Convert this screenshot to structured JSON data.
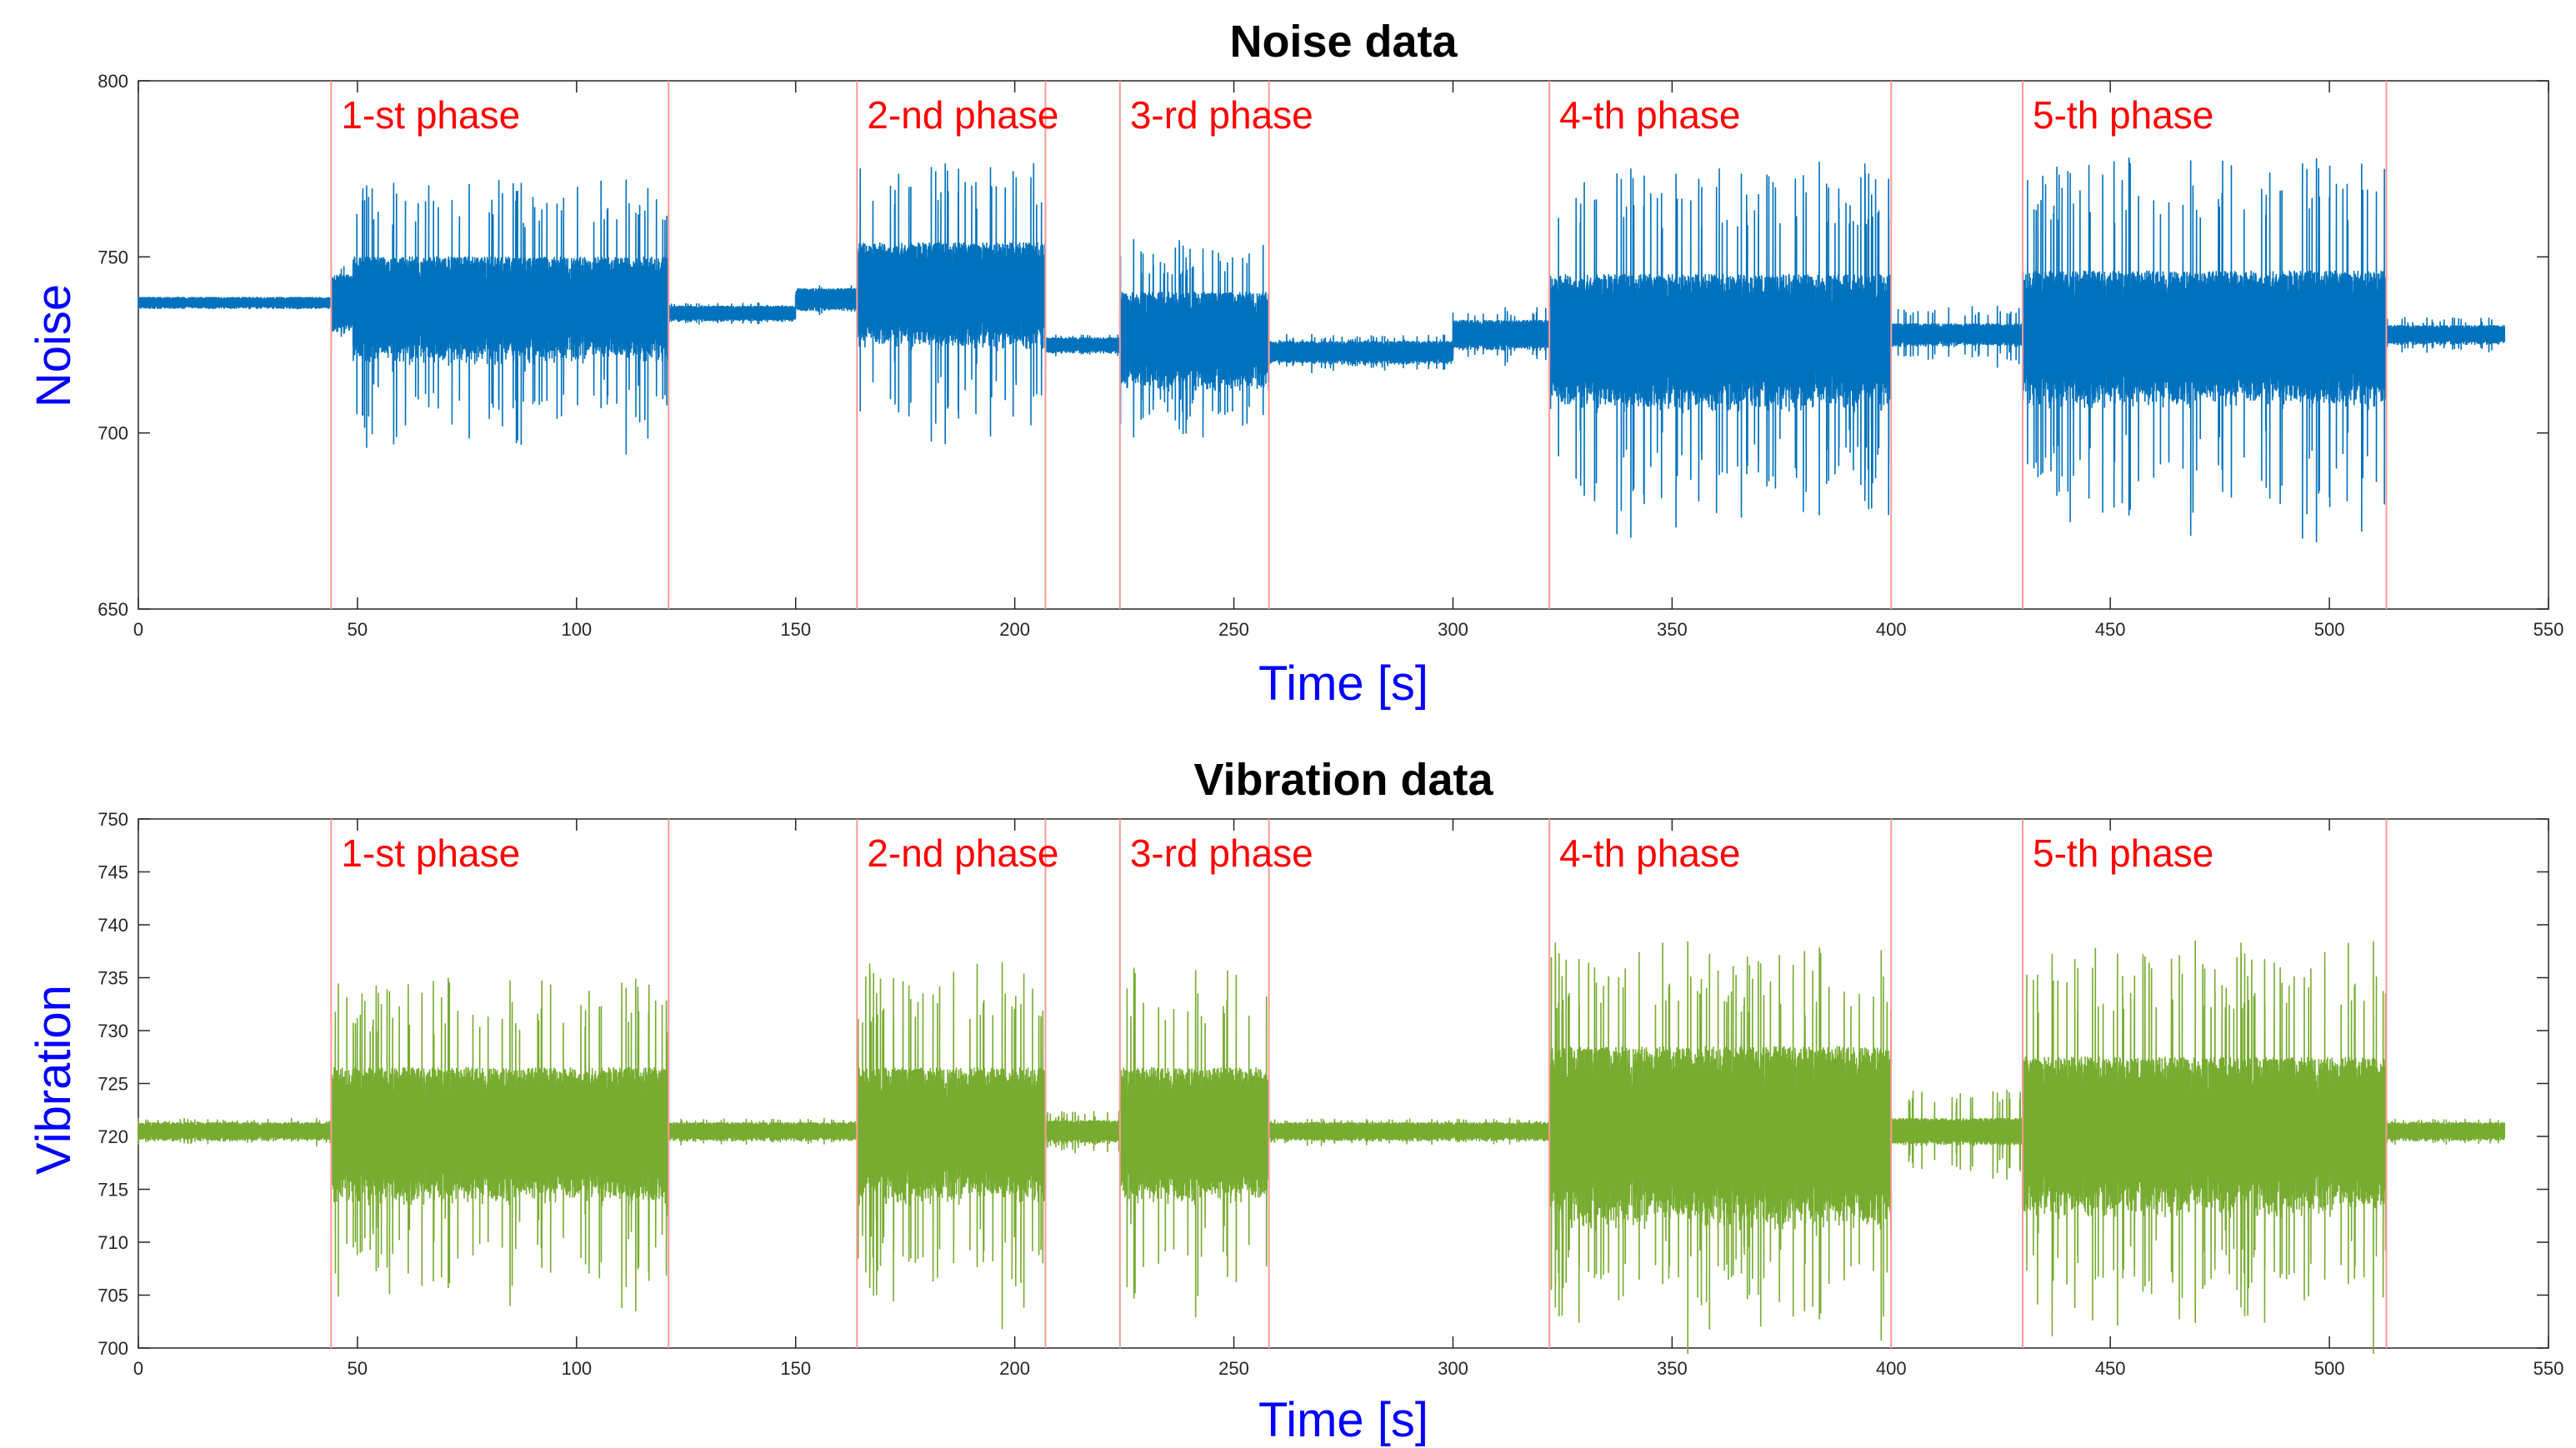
{
  "chart_data": [
    {
      "type": "line",
      "title": "Noise data",
      "xlabel": "Time [s]",
      "ylabel": "Noise",
      "xlim": [
        0,
        550
      ],
      "ylim": [
        650,
        800
      ],
      "xticks": [
        0,
        50,
        100,
        150,
        200,
        250,
        300,
        350,
        400,
        450,
        500,
        550
      ],
      "yticks": [
        650,
        700,
        750,
        800
      ],
      "series_color": "#0072BD",
      "boundary_color": "#FF9999",
      "phase_color": "#FF0000",
      "label_color": "#0000FF",
      "phase_boundaries": [
        44,
        121,
        164,
        207,
        224,
        258,
        322,
        400,
        430,
        513
      ],
      "phases": [
        {
          "label": "1-st phase",
          "start": 44,
          "end": 121
        },
        {
          "label": "2-nd phase",
          "start": 164,
          "end": 207
        },
        {
          "label": "3-rd phase",
          "start": 224,
          "end": 258
        },
        {
          "label": "4-th phase",
          "start": 322,
          "end": 400
        },
        {
          "label": "5-th phase",
          "start": 430,
          "end": 513
        }
      ],
      "segments": [
        {
          "start": 0,
          "end": 44,
          "center": 737,
          "amp": 1.5,
          "peak": 1.5
        },
        {
          "start": 44,
          "end": 49,
          "center": 737,
          "amp": 8,
          "peak": 14
        },
        {
          "start": 49,
          "end": 121,
          "center": 736,
          "amp": 14,
          "peak": 36
        },
        {
          "start": 121,
          "end": 150,
          "center": 734,
          "amp": 2,
          "peak": 3
        },
        {
          "start": 150,
          "end": 164,
          "center": 738,
          "amp": 3,
          "peak": 4
        },
        {
          "start": 164,
          "end": 207,
          "center": 740,
          "amp": 14,
          "peak": 38
        },
        {
          "start": 207,
          "end": 224,
          "center": 725,
          "amp": 2,
          "peak": 3
        },
        {
          "start": 224,
          "end": 258,
          "center": 727,
          "amp": 13,
          "peak": 28
        },
        {
          "start": 258,
          "end": 300,
          "center": 723,
          "amp": 3,
          "peak": 5
        },
        {
          "start": 300,
          "end": 322,
          "center": 728,
          "amp": 4,
          "peak": 8
        },
        {
          "start": 322,
          "end": 400,
          "center": 727,
          "amp": 18,
          "peak": 50
        },
        {
          "start": 400,
          "end": 430,
          "center": 728,
          "amp": 3,
          "peak": 8
        },
        {
          "start": 430,
          "end": 513,
          "center": 728,
          "amp": 18,
          "peak": 52
        },
        {
          "start": 513,
          "end": 540,
          "center": 728,
          "amp": 2.5,
          "peak": 5
        }
      ]
    },
    {
      "type": "line",
      "title": "Vibration data",
      "xlabel": "Time [s]",
      "ylabel": "Vibration",
      "xlim": [
        0,
        550
      ],
      "ylim": [
        700,
        750
      ],
      "xticks": [
        0,
        50,
        100,
        150,
        200,
        250,
        300,
        350,
        400,
        450,
        500,
        550
      ],
      "yticks": [
        700,
        705,
        710,
        715,
        720,
        725,
        730,
        735,
        740,
        745,
        750
      ],
      "series_color": "#77AC30",
      "boundary_color": "#FF9999",
      "phase_color": "#FF0000",
      "label_color": "#0000FF",
      "phase_boundaries": [
        44,
        121,
        164,
        207,
        224,
        258,
        322,
        400,
        430,
        513
      ],
      "phases": [
        {
          "label": "1-st phase",
          "start": 44,
          "end": 121
        },
        {
          "label": "2-nd phase",
          "start": 164,
          "end": 207
        },
        {
          "label": "3-rd phase",
          "start": 224,
          "end": 258
        },
        {
          "label": "4-th phase",
          "start": 322,
          "end": 400
        },
        {
          "label": "5-th phase",
          "start": 430,
          "end": 513
        }
      ],
      "segments": [
        {
          "start": 0,
          "end": 44,
          "center": 720.5,
          "amp": 0.8,
          "peak": 1.2
        },
        {
          "start": 44,
          "end": 121,
          "center": 720.5,
          "amp": 6,
          "peak": 15
        },
        {
          "start": 121,
          "end": 164,
          "center": 720.5,
          "amp": 0.8,
          "peak": 1.2
        },
        {
          "start": 164,
          "end": 207,
          "center": 720.5,
          "amp": 6,
          "peak": 16
        },
        {
          "start": 207,
          "end": 224,
          "center": 720.5,
          "amp": 1,
          "peak": 2
        },
        {
          "start": 224,
          "end": 258,
          "center": 720.5,
          "amp": 6,
          "peak": 16
        },
        {
          "start": 258,
          "end": 322,
          "center": 720.5,
          "amp": 0.8,
          "peak": 1.2
        },
        {
          "start": 322,
          "end": 400,
          "center": 720.5,
          "amp": 8,
          "peak": 18
        },
        {
          "start": 400,
          "end": 430,
          "center": 720.5,
          "amp": 1.2,
          "peak": 4
        },
        {
          "start": 430,
          "end": 513,
          "center": 720.5,
          "amp": 7,
          "peak": 18
        },
        {
          "start": 513,
          "end": 540,
          "center": 720.5,
          "amp": 0.8,
          "peak": 1.2
        }
      ]
    }
  ]
}
